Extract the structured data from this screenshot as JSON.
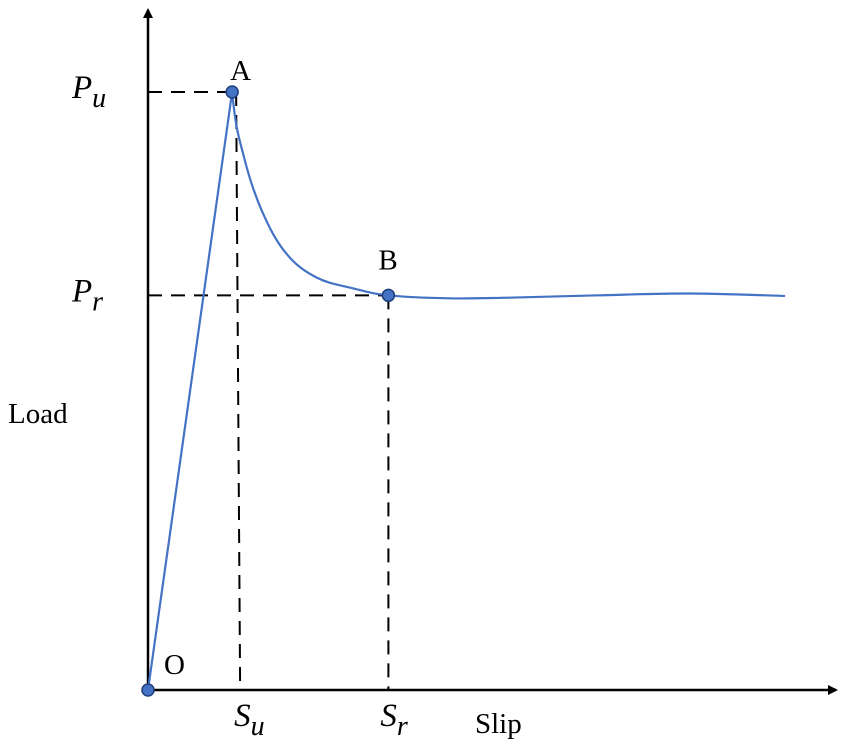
{
  "chart_data": {
    "type": "line",
    "xlabel": "Slip",
    "ylabel": "Load",
    "x_ticks": [
      {
        "main": "S",
        "sub": "u"
      },
      {
        "main": "S",
        "sub": "r"
      }
    ],
    "y_ticks": [
      {
        "main": "P",
        "sub": "u"
      },
      {
        "main": "P",
        "sub": "r"
      }
    ],
    "points": [
      {
        "label": "O",
        "x": 0,
        "y": 0
      },
      {
        "label": "A",
        "x": 0.14,
        "y": 1.0
      },
      {
        "label": "B",
        "x": 0.4,
        "y": 0.66
      }
    ],
    "series": [
      {
        "values": [
          [
            0,
            0
          ],
          [
            0.14,
            1.0
          ],
          [
            0.16,
            0.89
          ],
          [
            0.19,
            0.8
          ],
          [
            0.23,
            0.73
          ],
          [
            0.28,
            0.69
          ],
          [
            0.34,
            0.672
          ],
          [
            0.4,
            0.66
          ],
          [
            0.5,
            0.655
          ],
          [
            0.6,
            0.656
          ],
          [
            0.75,
            0.66
          ],
          [
            0.9,
            0.663
          ],
          [
            1.06,
            0.659
          ]
        ]
      }
    ],
    "line_color": "#4472C4",
    "marker_color": "#4472C4",
    "guide_style": "dashed",
    "axis_arrows": true,
    "grid": false
  }
}
